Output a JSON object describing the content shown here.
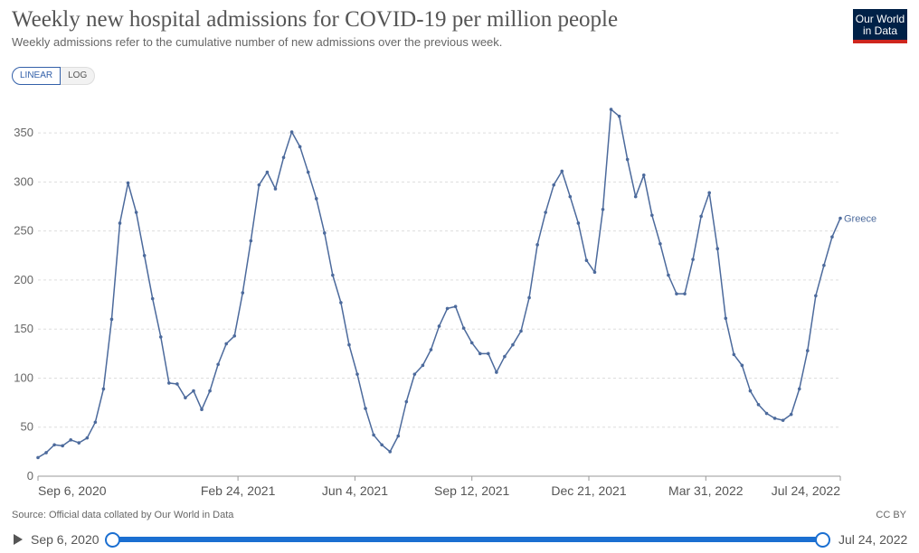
{
  "header": {
    "title": "Weekly new hospital admissions for COVID-19 per million people",
    "subtitle": "Weekly admissions refer to the cumulative number of new admissions over the previous week.",
    "logo_line1": "Our World",
    "logo_line2": "in Data"
  },
  "controls": {
    "linear_label": "LINEAR",
    "log_label": "LOG",
    "selected": "LINEAR"
  },
  "footer": {
    "source": "Source: Official data collated by Our World in Data",
    "license": "CC BY"
  },
  "timeline": {
    "start_label": "Sep 6, 2020",
    "end_label": "Jul 24, 2022"
  },
  "colors": {
    "series": "#4c6a9c",
    "grid": "#dddddd",
    "accent": "#1b6fd1",
    "logo_bg": "#002147",
    "logo_bar": "#ce261e"
  },
  "chart_data": {
    "type": "line",
    "title": "Weekly new hospital admissions for COVID-19 per million people",
    "ylim": [
      0,
      375
    ],
    "yticks": [
      0,
      50,
      100,
      150,
      200,
      250,
      300,
      350
    ],
    "x_start": "2020-09-06",
    "x_ticks": [
      "Sep 6, 2020",
      "Feb 24, 2021",
      "Jun 4, 2021",
      "Sep 12, 2021",
      "Dec 21, 2021",
      "Mar 31, 2022",
      "Jul 24, 2022"
    ],
    "grid": true,
    "series": [
      {
        "name": "Greece",
        "x": [
          "2020-09-06",
          "2020-09-13",
          "2020-09-20",
          "2020-09-27",
          "2020-10-04",
          "2020-10-11",
          "2020-10-18",
          "2020-10-25",
          "2020-11-01",
          "2020-11-08",
          "2020-11-15",
          "2020-11-22",
          "2020-11-29",
          "2020-12-06",
          "2020-12-13",
          "2020-12-20",
          "2020-12-27",
          "2021-01-03",
          "2021-01-10",
          "2021-01-17",
          "2021-01-24",
          "2021-01-31",
          "2021-02-07",
          "2021-02-14",
          "2021-02-21",
          "2021-02-28",
          "2021-03-07",
          "2021-03-14",
          "2021-03-21",
          "2021-03-28",
          "2021-04-04",
          "2021-04-11",
          "2021-04-18",
          "2021-04-25",
          "2021-05-02",
          "2021-05-09",
          "2021-05-16",
          "2021-05-23",
          "2021-05-30",
          "2021-06-06",
          "2021-06-13",
          "2021-06-20",
          "2021-06-27",
          "2021-07-04",
          "2021-07-11",
          "2021-07-18",
          "2021-07-25",
          "2021-08-01",
          "2021-08-08",
          "2021-08-15",
          "2021-08-22",
          "2021-08-29",
          "2021-09-05",
          "2021-09-12",
          "2021-09-19",
          "2021-09-26",
          "2021-10-03",
          "2021-10-10",
          "2021-10-17",
          "2021-10-24",
          "2021-10-31",
          "2021-11-07",
          "2021-11-14",
          "2021-11-21",
          "2021-11-28",
          "2021-12-05",
          "2021-12-12",
          "2021-12-19",
          "2021-12-26",
          "2022-01-02",
          "2022-01-09",
          "2022-01-16",
          "2022-01-23",
          "2022-01-30",
          "2022-02-06",
          "2022-02-13",
          "2022-02-20",
          "2022-02-27",
          "2022-03-06",
          "2022-03-13",
          "2022-03-20",
          "2022-03-27",
          "2022-04-03",
          "2022-04-10",
          "2022-04-17",
          "2022-04-24",
          "2022-05-01",
          "2022-05-08",
          "2022-05-15",
          "2022-05-22",
          "2022-05-29",
          "2022-06-05",
          "2022-06-12",
          "2022-06-19",
          "2022-06-26",
          "2022-07-03",
          "2022-07-10",
          "2022-07-17",
          "2022-07-24"
        ],
        "values": [
          19,
          24,
          32,
          31,
          37,
          34,
          39,
          55,
          89,
          160,
          258,
          299,
          269,
          225,
          181,
          142,
          95,
          94,
          80,
          87,
          68,
          87,
          114,
          135,
          143,
          187,
          240,
          297,
          310,
          293,
          325,
          351,
          336,
          310,
          283,
          248,
          205,
          177,
          134,
          104,
          69,
          42,
          32,
          25,
          41,
          76,
          104,
          113,
          129,
          153,
          171,
          173,
          151,
          136,
          125,
          125,
          106,
          122,
          134,
          148,
          182,
          236,
          269,
          297,
          311,
          285,
          258,
          220,
          208,
          272,
          374,
          367,
          323,
          285,
          307,
          266,
          237,
          205,
          186,
          186,
          221,
          265,
          289,
          232,
          161,
          124,
          113,
          87,
          73,
          64,
          59,
          57,
          63,
          89,
          128,
          184,
          215,
          244,
          263
        ]
      }
    ]
  }
}
